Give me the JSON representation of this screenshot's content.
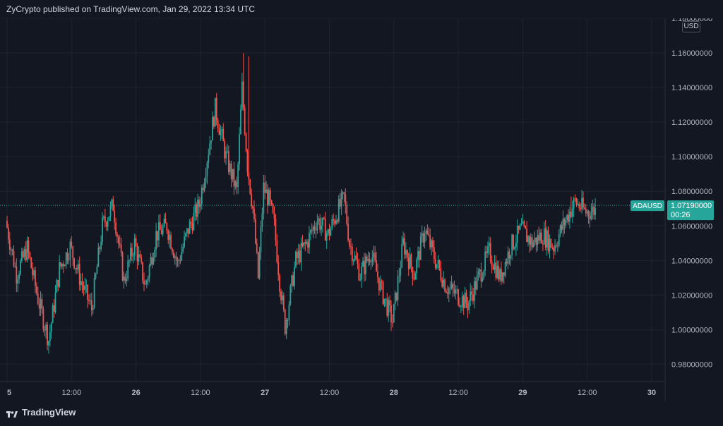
{
  "header": {
    "published_line": "ZyCrypto published on TradingView.com, Jan 29, 2022 13:34 UTC"
  },
  "footer": {
    "brand": "TradingView"
  },
  "currency": "USD",
  "colors": {
    "background": "#131722",
    "up": "#26a69a",
    "down": "#ef5350",
    "grid": "#1f2330",
    "price_line": "#26a69a"
  },
  "chart_data": {
    "type": "candlestick",
    "symbol": "ADAUSD",
    "last_price": 1.0719,
    "last_price_label": "1.07190000",
    "countdown": "00:26",
    "ylim": [
      0.97,
      1.18
    ],
    "y_ticks": [
      {
        "value": 1.18,
        "label": "1.18000000"
      },
      {
        "value": 1.16,
        "label": "1.16000000"
      },
      {
        "value": 1.14,
        "label": "1.14000000"
      },
      {
        "value": 1.12,
        "label": "1.12000000"
      },
      {
        "value": 1.1,
        "label": "1.10000000"
      },
      {
        "value": 1.08,
        "label": "1.08000000"
      },
      {
        "value": 1.06,
        "label": "1.06000000"
      },
      {
        "value": 1.04,
        "label": "1.04000000"
      },
      {
        "value": 1.02,
        "label": "1.02000000"
      },
      {
        "value": 1.0,
        "label": "1.00000000"
      },
      {
        "value": 0.98,
        "label": "0.98000000"
      }
    ],
    "x_ticks": [
      {
        "t": 0,
        "label": "5"
      },
      {
        "t": 12,
        "label": "12:00"
      },
      {
        "t": 24,
        "label": "26"
      },
      {
        "t": 36,
        "label": "12:00"
      },
      {
        "t": 48,
        "label": "27"
      },
      {
        "t": 60,
        "label": "12:00"
      },
      {
        "t": 72,
        "label": "28"
      },
      {
        "t": 84,
        "label": "12:00"
      },
      {
        "t": 96,
        "label": "29"
      },
      {
        "t": 108,
        "label": "12:00"
      },
      {
        "t": 120,
        "label": "30"
      }
    ],
    "x_range_hours": [
      0,
      122.5
    ],
    "path_points": [
      [
        0,
        1.063
      ],
      [
        2,
        1.032
      ],
      [
        4,
        1.047
      ],
      [
        6,
        1.018
      ],
      [
        8,
        0.994
      ],
      [
        10,
        1.035
      ],
      [
        12,
        1.048
      ],
      [
        14,
        1.028
      ],
      [
        16,
        1.012
      ],
      [
        18,
        1.06
      ],
      [
        20,
        1.072
      ],
      [
        22,
        1.028
      ],
      [
        24,
        1.05
      ],
      [
        26,
        1.025
      ],
      [
        28,
        1.055
      ],
      [
        30,
        1.06
      ],
      [
        32,
        1.038
      ],
      [
        34,
        1.058
      ],
      [
        36,
        1.072
      ],
      [
        37,
        1.09
      ],
      [
        39,
        1.128
      ],
      [
        41,
        1.1
      ],
      [
        43,
        1.08
      ],
      [
        44,
        1.14
      ],
      [
        45,
        1.095
      ],
      [
        46,
        1.07
      ],
      [
        47,
        1.03
      ],
      [
        48,
        1.082
      ],
      [
        49,
        1.075
      ],
      [
        50,
        1.06
      ],
      [
        51,
        1.028
      ],
      [
        52,
        1.002
      ],
      [
        54,
        1.04
      ],
      [
        56,
        1.05
      ],
      [
        58,
        1.064
      ],
      [
        60,
        1.055
      ],
      [
        62,
        1.07
      ],
      [
        63,
        1.076
      ],
      [
        64,
        1.05
      ],
      [
        66,
        1.032
      ],
      [
        68,
        1.045
      ],
      [
        70,
        1.022
      ],
      [
        72,
        1.005
      ],
      [
        74,
        1.05
      ],
      [
        76,
        1.032
      ],
      [
        78,
        1.058
      ],
      [
        80,
        1.04
      ],
      [
        82,
        1.025
      ],
      [
        84,
        1.02
      ],
      [
        86,
        1.015
      ],
      [
        88,
        1.03
      ],
      [
        90,
        1.045
      ],
      [
        92,
        1.03
      ],
      [
        94,
        1.048
      ],
      [
        96,
        1.058
      ],
      [
        98,
        1.05
      ],
      [
        100,
        1.055
      ],
      [
        102,
        1.048
      ],
      [
        104,
        1.062
      ],
      [
        106,
        1.074
      ],
      [
        108,
        1.068
      ],
      [
        109.5,
        1.069
      ]
    ],
    "spikes": [
      {
        "t": 44,
        "high": 1.16
      },
      {
        "t": 45,
        "high": 1.158
      },
      {
        "t": 39,
        "high": 1.132
      },
      {
        "t": 8,
        "low": 0.992
      },
      {
        "t": 52,
        "low": 1.0
      },
      {
        "t": 72,
        "low": 1.005
      },
      {
        "t": 105,
        "high": 1.077
      },
      {
        "t": 109.5,
        "high": 1.076
      }
    ]
  }
}
